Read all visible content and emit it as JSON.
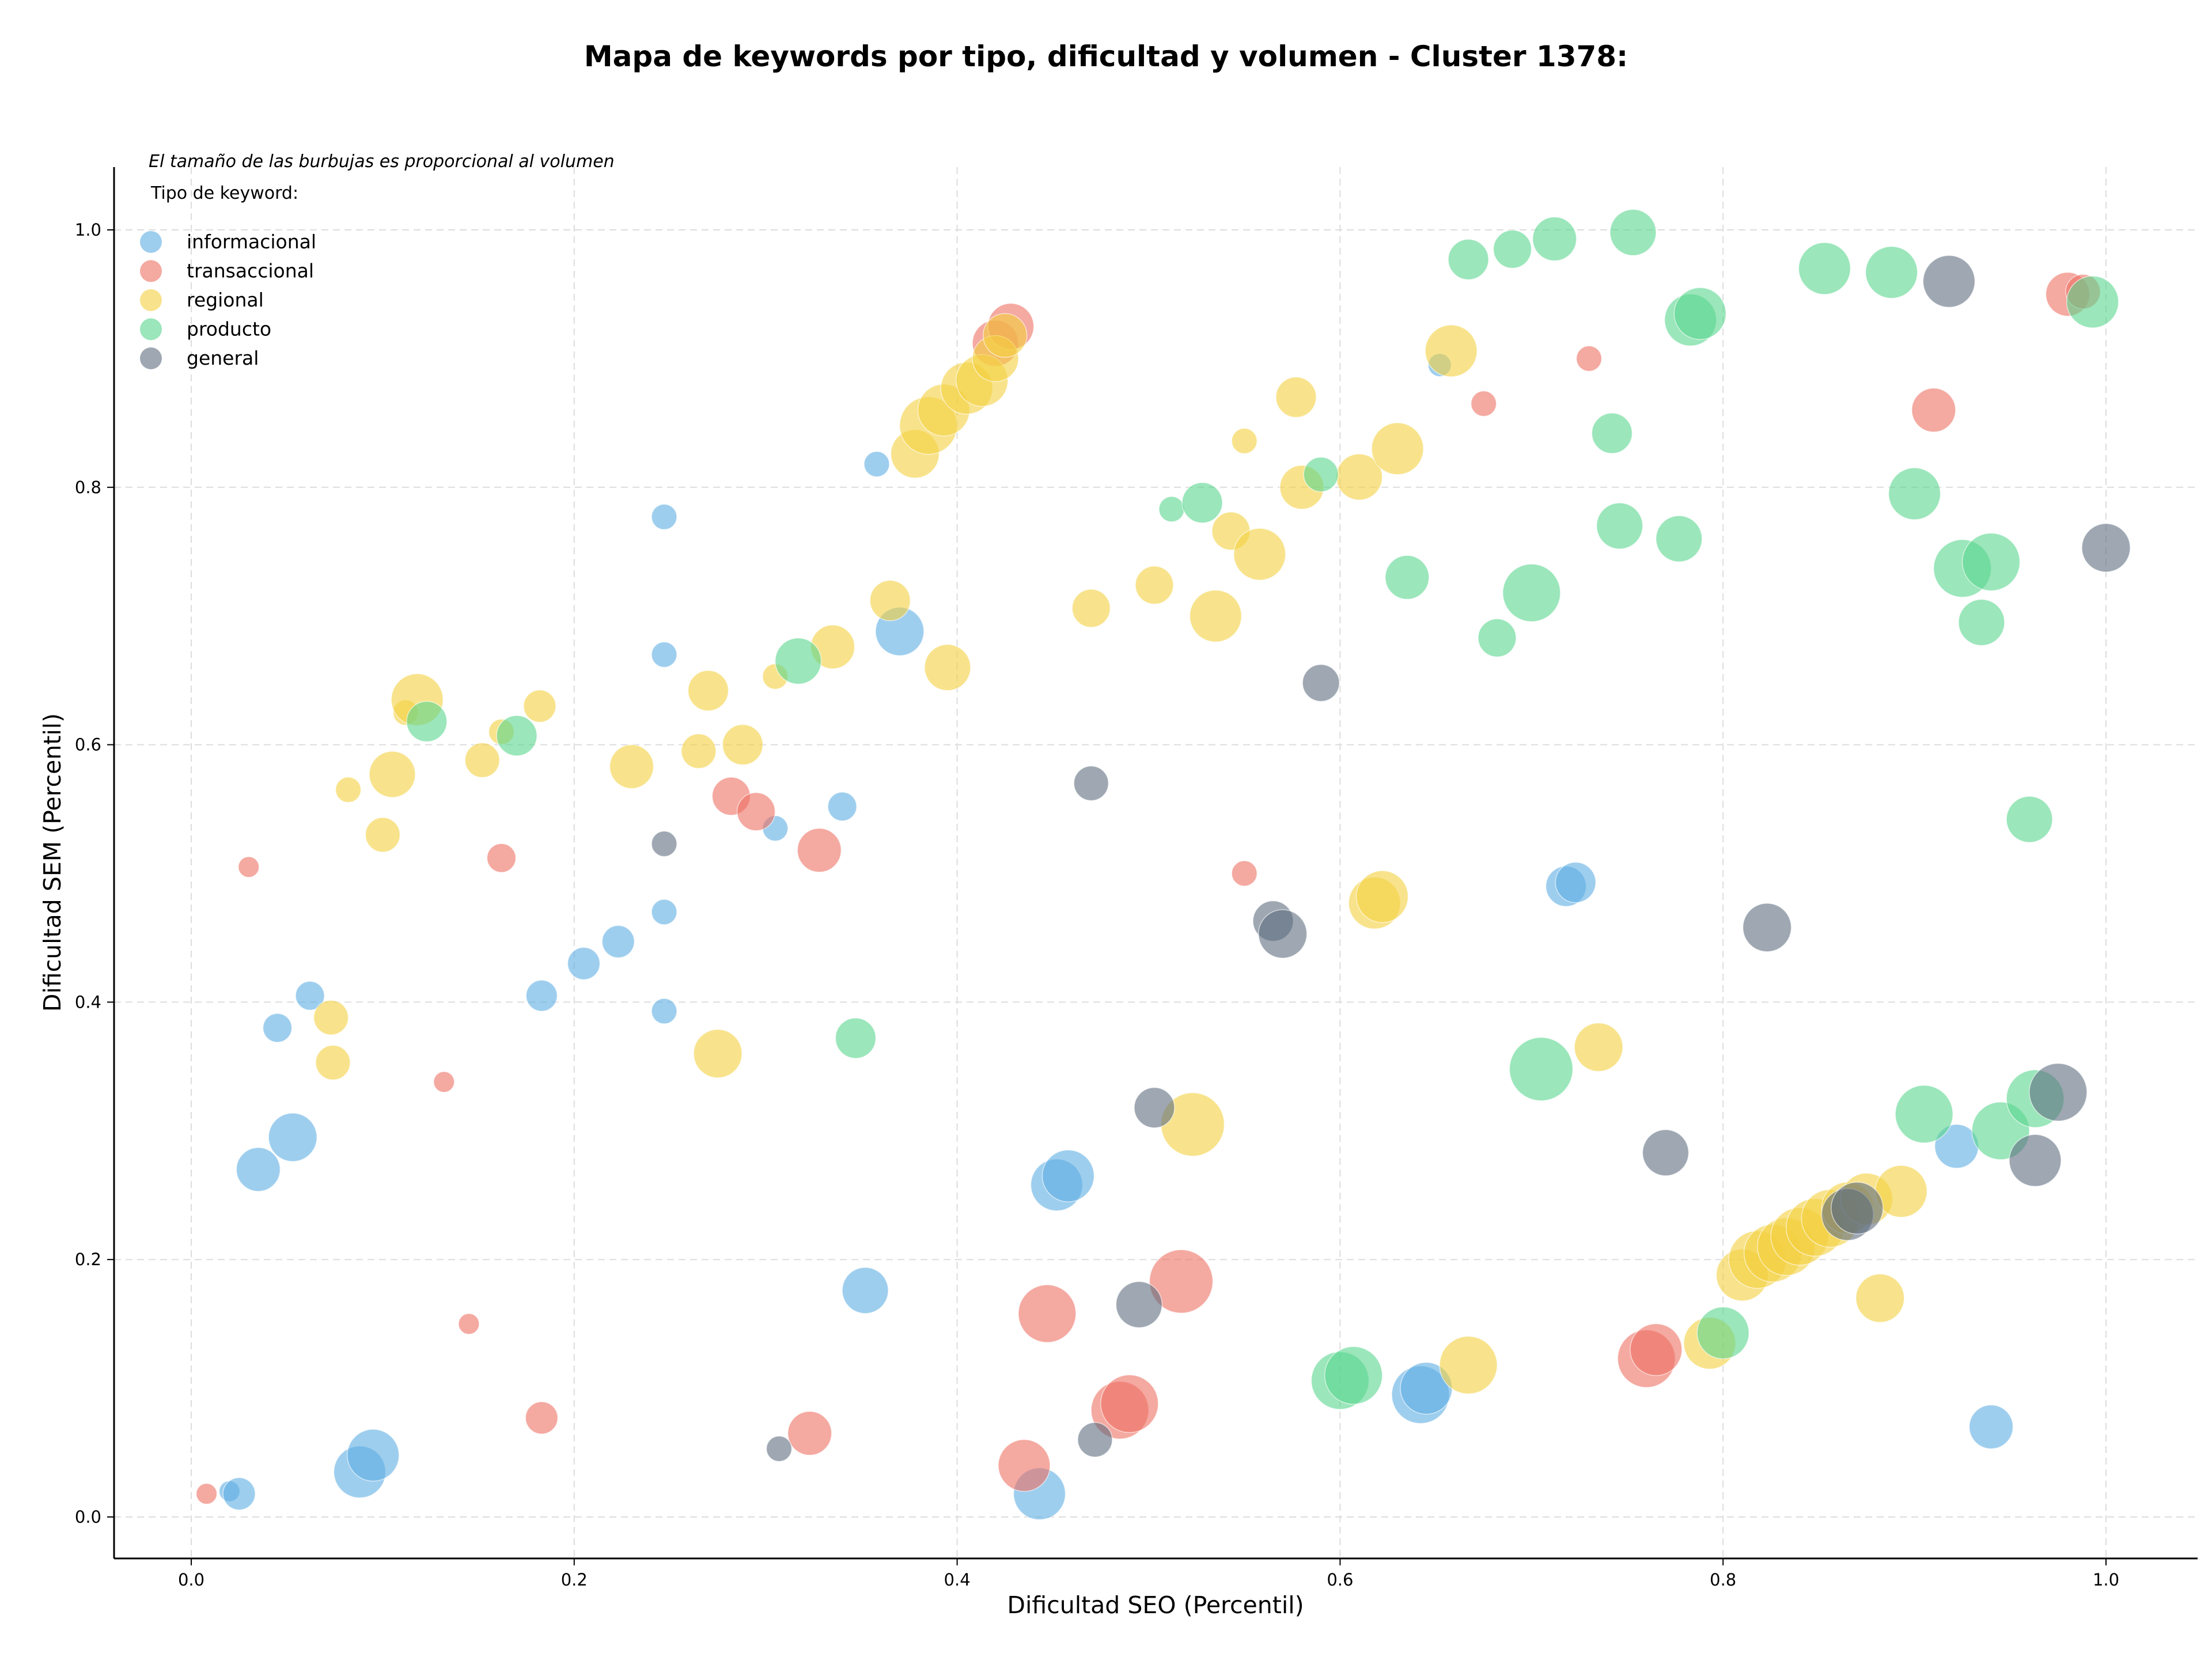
{
  "chart_data": {
    "type": "scatter",
    "title": "Mapa de keywords por tipo, dificultad y volumen - Cluster 1378:",
    "xlabel": "Dificultad SEO (Percentil)",
    "ylabel": "Dificultad SEM (Percentil)",
    "xlim": [
      -0.04,
      1.05
    ],
    "ylim": [
      -0.03,
      1.05
    ],
    "xticks": [
      0.0,
      0.2,
      0.4,
      0.6,
      0.8,
      1.0
    ],
    "yticks": [
      0.0,
      0.2,
      0.4,
      0.6,
      0.8,
      1.0
    ],
    "xtick_labels": [
      "0.0",
      "0.2",
      "0.4",
      "0.6",
      "0.8",
      "1.0"
    ],
    "ytick_labels": [
      "0.0",
      "0.2",
      "0.4",
      "0.6",
      "0.8",
      "1.0"
    ],
    "grid": true,
    "annotation": "El tamaño de las burbujas es proporcional al volumen",
    "legend": {
      "title": "Tipo de keyword:",
      "placement": "top-left",
      "entries": [
        {
          "label": "informacional",
          "color": "#5DADE2"
        },
        {
          "label": "transaccional",
          "color": "#EC7063"
        },
        {
          "label": "regional",
          "color": "#F4D03F"
        },
        {
          "label": "producto",
          "color": "#58D68D"
        },
        {
          "label": "general",
          "color": "#5D6D7E"
        }
      ]
    },
    "size_note": "third value in each point is bubble radius index (proportional to volume)",
    "series": [
      {
        "name": "informacional",
        "color": "#5DADE2",
        "points": [
          [
            0.02,
            0.02,
            18
          ],
          [
            0.025,
            0.018,
            28
          ],
          [
            0.035,
            0.27,
            38
          ],
          [
            0.053,
            0.295,
            42
          ],
          [
            0.045,
            0.38,
            25
          ],
          [
            0.062,
            0.405,
            25
          ],
          [
            0.088,
            0.035,
            45
          ],
          [
            0.095,
            0.048,
            45
          ],
          [
            0.183,
            0.405,
            27
          ],
          [
            0.205,
            0.43,
            28
          ],
          [
            0.223,
            0.447,
            28
          ],
          [
            0.247,
            0.47,
            22
          ],
          [
            0.247,
            0.393,
            22
          ],
          [
            0.247,
            0.67,
            22
          ],
          [
            0.247,
            0.777,
            22
          ],
          [
            0.305,
            0.535,
            22
          ],
          [
            0.34,
            0.552,
            25
          ],
          [
            0.358,
            0.818,
            22
          ],
          [
            0.37,
            0.688,
            42
          ],
          [
            0.352,
            0.176,
            40
          ],
          [
            0.452,
            0.258,
            45
          ],
          [
            0.458,
            0.265,
            45
          ],
          [
            0.443,
            0.018,
            45
          ],
          [
            0.642,
            0.095,
            50
          ],
          [
            0.645,
            0.1,
            45
          ],
          [
            0.652,
            0.895,
            20
          ],
          [
            0.718,
            0.49,
            35
          ],
          [
            0.723,
            0.493,
            35
          ],
          [
            0.922,
            0.288,
            38
          ],
          [
            0.94,
            0.07,
            38
          ]
        ]
      },
      {
        "name": "transaccional",
        "color": "#EC7063",
        "points": [
          [
            0.008,
            0.018,
            18
          ],
          [
            0.03,
            0.505,
            18
          ],
          [
            0.132,
            0.338,
            18
          ],
          [
            0.145,
            0.15,
            18
          ],
          [
            0.162,
            0.512,
            25
          ],
          [
            0.183,
            0.077,
            28
          ],
          [
            0.282,
            0.56,
            33
          ],
          [
            0.295,
            0.548,
            33
          ],
          [
            0.328,
            0.518,
            38
          ],
          [
            0.323,
            0.065,
            38
          ],
          [
            0.435,
            0.04,
            45
          ],
          [
            0.447,
            0.158,
            50
          ],
          [
            0.485,
            0.083,
            50
          ],
          [
            0.49,
            0.088,
            50
          ],
          [
            0.517,
            0.183,
            55
          ],
          [
            0.42,
            0.912,
            40
          ],
          [
            0.428,
            0.925,
            40
          ],
          [
            0.55,
            0.5,
            22
          ],
          [
            0.675,
            0.865,
            22
          ],
          [
            0.73,
            0.9,
            22
          ],
          [
            0.76,
            0.123,
            50
          ],
          [
            0.765,
            0.13,
            45
          ],
          [
            0.91,
            0.86,
            38
          ],
          [
            0.98,
            0.95,
            38
          ],
          [
            0.988,
            0.952,
            30
          ]
        ]
      },
      {
        "name": "regional",
        "color": "#F4D03F",
        "points": [
          [
            0.073,
            0.388,
            30
          ],
          [
            0.074,
            0.353,
            30
          ],
          [
            0.082,
            0.565,
            22
          ],
          [
            0.1,
            0.53,
            30
          ],
          [
            0.105,
            0.577,
            40
          ],
          [
            0.112,
            0.625,
            22
          ],
          [
            0.118,
            0.635,
            45
          ],
          [
            0.152,
            0.588,
            30
          ],
          [
            0.162,
            0.61,
            22
          ],
          [
            0.182,
            0.63,
            28
          ],
          [
            0.23,
            0.583,
            38
          ],
          [
            0.265,
            0.595,
            30
          ],
          [
            0.27,
            0.642,
            35
          ],
          [
            0.275,
            0.36,
            42
          ],
          [
            0.288,
            0.6,
            35
          ],
          [
            0.305,
            0.653,
            22
          ],
          [
            0.335,
            0.676,
            38
          ],
          [
            0.365,
            0.712,
            35
          ],
          [
            0.378,
            0.826,
            42
          ],
          [
            0.385,
            0.848,
            50
          ],
          [
            0.393,
            0.86,
            45
          ],
          [
            0.395,
            0.66,
            40
          ],
          [
            0.405,
            0.877,
            45
          ],
          [
            0.413,
            0.883,
            45
          ],
          [
            0.42,
            0.9,
            40
          ],
          [
            0.425,
            0.918,
            38
          ],
          [
            0.47,
            0.706,
            33
          ],
          [
            0.503,
            0.724,
            33
          ],
          [
            0.523,
            0.305,
            55
          ],
          [
            0.535,
            0.7,
            45
          ],
          [
            0.543,
            0.766,
            33
          ],
          [
            0.55,
            0.836,
            22
          ],
          [
            0.558,
            0.748,
            45
          ],
          [
            0.577,
            0.87,
            35
          ],
          [
            0.58,
            0.8,
            38
          ],
          [
            0.61,
            0.808,
            40
          ],
          [
            0.618,
            0.477,
            45
          ],
          [
            0.622,
            0.482,
            45
          ],
          [
            0.63,
            0.83,
            45
          ],
          [
            0.658,
            0.906,
            45
          ],
          [
            0.667,
            0.118,
            50
          ],
          [
            0.735,
            0.365,
            42
          ],
          [
            0.793,
            0.135,
            45
          ],
          [
            0.81,
            0.188,
            45
          ],
          [
            0.818,
            0.2,
            50
          ],
          [
            0.826,
            0.205,
            50
          ],
          [
            0.833,
            0.21,
            50
          ],
          [
            0.84,
            0.218,
            50
          ],
          [
            0.848,
            0.225,
            50
          ],
          [
            0.856,
            0.232,
            50
          ],
          [
            0.865,
            0.24,
            45
          ],
          [
            0.875,
            0.247,
            45
          ],
          [
            0.882,
            0.17,
            42
          ],
          [
            0.893,
            0.253,
            45
          ]
        ]
      },
      {
        "name": "producto",
        "color": "#58D68D",
        "points": [
          [
            0.123,
            0.618,
            35
          ],
          [
            0.17,
            0.607,
            35
          ],
          [
            0.317,
            0.665,
            40
          ],
          [
            0.347,
            0.372,
            35
          ],
          [
            0.512,
            0.783,
            22
          ],
          [
            0.528,
            0.788,
            35
          ],
          [
            0.59,
            0.81,
            30
          ],
          [
            0.6,
            0.106,
            50
          ],
          [
            0.607,
            0.11,
            50
          ],
          [
            0.635,
            0.73,
            38
          ],
          [
            0.667,
            0.977,
            35
          ],
          [
            0.682,
            0.683,
            33
          ],
          [
            0.69,
            0.985,
            33
          ],
          [
            0.7,
            0.718,
            50
          ],
          [
            0.705,
            0.348,
            55
          ],
          [
            0.712,
            0.993,
            38
          ],
          [
            0.742,
            0.842,
            35
          ],
          [
            0.746,
            0.77,
            40
          ],
          [
            0.753,
            0.998,
            40
          ],
          [
            0.777,
            0.76,
            40
          ],
          [
            0.783,
            0.93,
            45
          ],
          [
            0.788,
            0.935,
            45
          ],
          [
            0.8,
            0.143,
            45
          ],
          [
            0.853,
            0.97,
            45
          ],
          [
            0.888,
            0.967,
            45
          ],
          [
            0.9,
            0.795,
            45
          ],
          [
            0.905,
            0.313,
            50
          ],
          [
            0.925,
            0.737,
            50
          ],
          [
            0.935,
            0.695,
            40
          ],
          [
            0.94,
            0.742,
            50
          ],
          [
            0.945,
            0.3,
            50
          ],
          [
            0.96,
            0.542,
            40
          ],
          [
            0.963,
            0.325,
            50
          ],
          [
            0.993,
            0.944,
            45
          ]
        ]
      },
      {
        "name": "general",
        "color": "#5D6D7E",
        "points": [
          [
            0.247,
            0.523,
            22
          ],
          [
            0.307,
            0.053,
            22
          ],
          [
            0.47,
            0.57,
            30
          ],
          [
            0.472,
            0.06,
            30
          ],
          [
            0.495,
            0.165,
            40
          ],
          [
            0.503,
            0.318,
            35
          ],
          [
            0.565,
            0.463,
            35
          ],
          [
            0.57,
            0.453,
            42
          ],
          [
            0.59,
            0.648,
            32
          ],
          [
            0.77,
            0.283,
            40
          ],
          [
            0.823,
            0.458,
            42
          ],
          [
            0.865,
            0.235,
            45
          ],
          [
            0.87,
            0.24,
            45
          ],
          [
            0.918,
            0.96,
            45
          ],
          [
            0.963,
            0.277,
            45
          ],
          [
            0.975,
            0.33,
            50
          ],
          [
            1.0,
            0.753,
            42
          ]
        ]
      }
    ]
  }
}
